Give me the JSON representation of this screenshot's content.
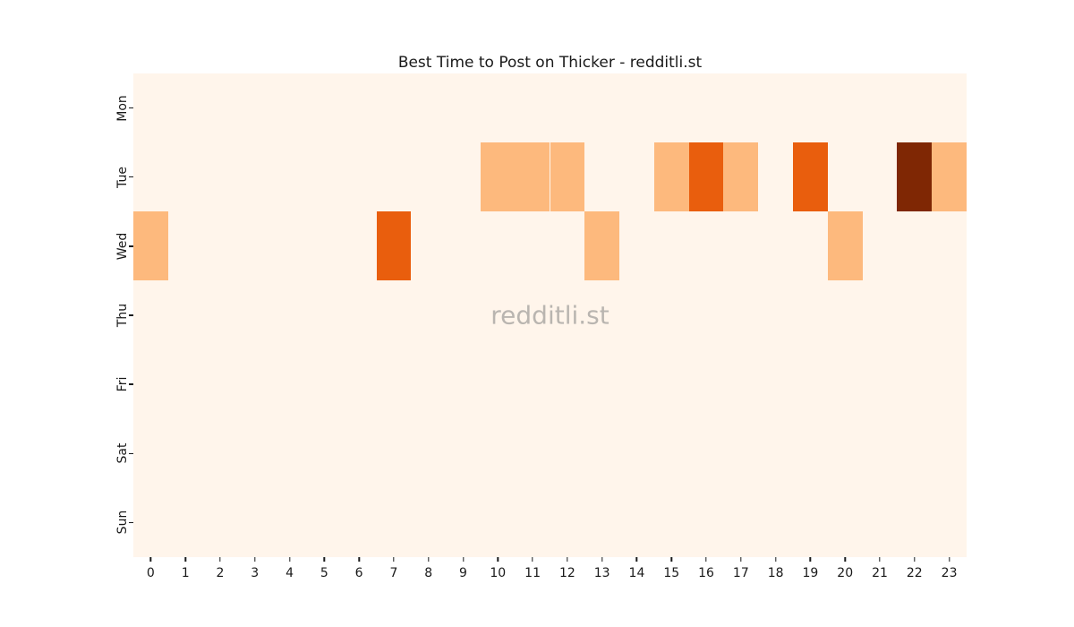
{
  "figure": {
    "title": "Best Time to Post on Thicker - redditli.st",
    "watermark": "redditli.st",
    "background_color": "#ffffff"
  },
  "chart_data": {
    "type": "heatmap",
    "title": "Best Time to Post on Thicker - redditli.st",
    "xlabel": "",
    "ylabel": "",
    "x_ticks": [
      "0",
      "1",
      "2",
      "3",
      "4",
      "5",
      "6",
      "7",
      "8",
      "9",
      "10",
      "11",
      "12",
      "13",
      "14",
      "15",
      "16",
      "17",
      "18",
      "19",
      "20",
      "21",
      "22",
      "23"
    ],
    "y_ticks": [
      "Mon",
      "Tue",
      "Wed",
      "Thu",
      "Fri",
      "Sat",
      "Sun"
    ],
    "values": [
      [
        0,
        0,
        0,
        0,
        0,
        0,
        0,
        0,
        0,
        0,
        0,
        0,
        0,
        0,
        0,
        0,
        0,
        0,
        0,
        0,
        0,
        0,
        0,
        0
      ],
      [
        0,
        0,
        0,
        0,
        0,
        0,
        0,
        0,
        0,
        0,
        1,
        1,
        1,
        0,
        0,
        1,
        2,
        1,
        0,
        2,
        0,
        0,
        3,
        1
      ],
      [
        1,
        0,
        0,
        0,
        0,
        0,
        0,
        2,
        0,
        0,
        0,
        0,
        0,
        1,
        0,
        0,
        0,
        0,
        0,
        0,
        1,
        0,
        0,
        0
      ],
      [
        0,
        0,
        0,
        0,
        0,
        0,
        0,
        0,
        0,
        0,
        0,
        0,
        0,
        0,
        0,
        0,
        0,
        0,
        0,
        0,
        0,
        0,
        0,
        0
      ],
      [
        0,
        0,
        0,
        0,
        0,
        0,
        0,
        0,
        0,
        0,
        0,
        0,
        0,
        0,
        0,
        0,
        0,
        0,
        0,
        0,
        0,
        0,
        0,
        0
      ],
      [
        0,
        0,
        0,
        0,
        0,
        0,
        0,
        0,
        0,
        0,
        0,
        0,
        0,
        0,
        0,
        0,
        0,
        0,
        0,
        0,
        0,
        0,
        0,
        0
      ],
      [
        0,
        0,
        0,
        0,
        0,
        0,
        0,
        0,
        0,
        0,
        0,
        0,
        0,
        0,
        0,
        0,
        0,
        0,
        0,
        0,
        0,
        0,
        0,
        0
      ]
    ],
    "value_range": [
      0,
      3
    ],
    "colormap": "Oranges",
    "colors": {
      "0": "#fff5eb",
      "1": "#fdb97d",
      "2": "#e95e0d",
      "3": "#7f2704"
    },
    "grid": false,
    "legend": "none",
    "watermark": "redditli.st"
  }
}
